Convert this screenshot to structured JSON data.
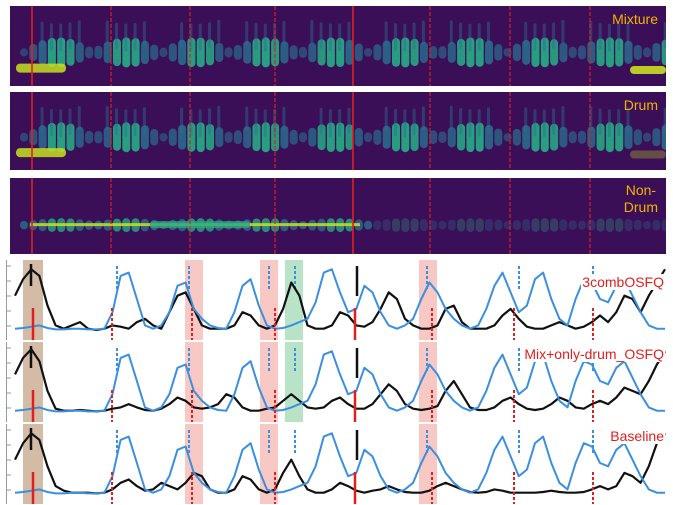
{
  "colors": {
    "background_dark": "#3b0f57",
    "energy_low": "#2a6f8e",
    "energy_mid": "#27a884",
    "energy_high": "#c9e020",
    "beat_line": "#e0201f",
    "label_spec": "#f0b400",
    "label_plot": "#e0201f",
    "curve_black": "#111111",
    "curve_blue": "#3a8fe0",
    "dashed_blue": "#3a8fe0",
    "band_red": "#f4b6b0",
    "band_green": "#a8dcb8",
    "band_brown": "#c9aa8f"
  },
  "spectrograms": [
    {
      "label_lines": [
        "Mixture"
      ]
    },
    {
      "label_lines": [
        "Drum"
      ]
    },
    {
      "label_lines": [
        "Non-",
        "Drum"
      ]
    }
  ],
  "chart_data": [
    {
      "type": "line",
      "label": "3combOSFQ",
      "x": [
        0,
        1,
        2,
        3,
        4,
        5,
        6,
        7,
        8,
        9,
        10,
        11,
        12,
        13,
        14,
        15,
        16,
        17,
        18,
        19,
        20,
        21,
        22,
        23,
        24,
        25,
        26,
        27,
        28,
        29,
        30,
        31,
        32,
        33,
        34,
        35,
        36,
        37,
        38,
        39,
        40,
        41,
        42,
        43,
        44,
        45,
        46,
        47,
        48,
        49,
        50,
        51,
        52,
        53,
        54,
        55,
        56,
        57,
        58,
        59,
        60,
        61,
        62,
        63,
        64,
        65,
        66,
        67,
        68,
        69,
        70,
        71,
        72,
        73,
        74,
        75,
        76,
        77,
        78,
        79,
        80
      ],
      "series": [
        {
          "values": [
            0.55,
            0.8,
            0.95,
            0.85,
            0.4,
            0.1,
            0.05,
            0.1,
            0.15,
            0.05,
            0.03,
            0.05,
            0.1,
            0.08,
            0.05,
            0.15,
            0.2,
            0.1,
            0.05,
            0.3,
            0.55,
            0.6,
            0.35,
            0.1,
            0.05,
            0.05,
            0.05,
            0.1,
            0.3,
            0.25,
            0.1,
            0.05,
            0.1,
            0.35,
            0.75,
            0.55,
            0.1,
            0.05,
            0.05,
            0.1,
            0.3,
            0.25,
            0.1,
            0.08,
            0.15,
            0.35,
            0.6,
            0.5,
            0.2,
            0.1,
            0.05,
            0.05,
            0.1,
            0.35,
            0.4,
            0.15,
            0.05,
            0.05,
            0.05,
            0.1,
            0.25,
            0.35,
            0.2,
            0.08,
            0.05,
            0.05,
            0.1,
            0.15,
            0.1,
            0.05,
            0.08,
            0.15,
            0.25,
            0.15,
            0.3,
            0.55,
            0.5,
            0.3,
            0.55,
            0.75,
            0.95
          ]
        },
        {
          "values": [
            0.05,
            0.06,
            0.08,
            0.1,
            0.06,
            0.04,
            0.04,
            0.05,
            0.05,
            0.04,
            0.04,
            0.05,
            0.3,
            0.85,
            0.9,
            0.5,
            0.1,
            0.05,
            0.1,
            0.3,
            0.7,
            0.75,
            0.35,
            0.2,
            0.1,
            0.06,
            0.05,
            0.3,
            0.7,
            0.8,
            0.4,
            0.1,
            0.05,
            0.06,
            0.1,
            0.15,
            0.2,
            0.45,
            0.9,
            0.95,
            0.6,
            0.3,
            0.35,
            0.7,
            0.6,
            0.3,
            0.1,
            0.05,
            0.1,
            0.2,
            0.5,
            0.75,
            0.6,
            0.35,
            0.2,
            0.1,
            0.05,
            0.1,
            0.35,
            0.7,
            0.9,
            0.6,
            0.3,
            0.4,
            0.8,
            0.9,
            0.5,
            0.2,
            0.1,
            0.5,
            0.8,
            0.75,
            0.5,
            0.45,
            0.7,
            0.8,
            0.55,
            0.3,
            0.1,
            0.05,
            0.05
          ]
        }
      ]
    },
    {
      "type": "line",
      "label": "Mix+only-drum_OSFQ",
      "x": [
        0,
        1,
        2,
        3,
        4,
        5,
        6,
        7,
        8,
        9,
        10,
        11,
        12,
        13,
        14,
        15,
        16,
        17,
        18,
        19,
        20,
        21,
        22,
        23,
        24,
        25,
        26,
        27,
        28,
        29,
        30,
        31,
        32,
        33,
        34,
        35,
        36,
        37,
        38,
        39,
        40,
        41,
        42,
        43,
        44,
        45,
        46,
        47,
        48,
        49,
        50,
        51,
        52,
        53,
        54,
        55,
        56,
        57,
        58,
        59,
        60,
        61,
        62,
        63,
        64,
        65,
        66,
        67,
        68,
        69,
        70,
        71,
        72,
        73,
        74,
        75,
        76,
        77,
        78,
        79,
        80
      ],
      "series": [
        {
          "values": [
            0.6,
            0.85,
            0.98,
            0.8,
            0.35,
            0.08,
            0.05,
            0.05,
            0.06,
            0.05,
            0.04,
            0.05,
            0.08,
            0.1,
            0.15,
            0.1,
            0.06,
            0.05,
            0.08,
            0.15,
            0.25,
            0.2,
            0.1,
            0.08,
            0.1,
            0.15,
            0.3,
            0.25,
            0.1,
            0.05,
            0.05,
            0.08,
            0.1,
            0.2,
            0.3,
            0.2,
            0.1,
            0.08,
            0.1,
            0.2,
            0.25,
            0.15,
            0.08,
            0.08,
            0.15,
            0.3,
            0.45,
            0.35,
            0.15,
            0.08,
            0.06,
            0.08,
            0.12,
            0.35,
            0.5,
            0.3,
            0.1,
            0.06,
            0.06,
            0.1,
            0.2,
            0.25,
            0.15,
            0.08,
            0.06,
            0.08,
            0.15,
            0.25,
            0.2,
            0.1,
            0.08,
            0.15,
            0.2,
            0.15,
            0.25,
            0.4,
            0.35,
            0.3,
            0.5,
            0.75,
            0.95
          ]
        },
        {
          "values": [
            0.05,
            0.06,
            0.08,
            0.1,
            0.06,
            0.04,
            0.04,
            0.05,
            0.05,
            0.04,
            0.04,
            0.05,
            0.3,
            0.85,
            0.9,
            0.5,
            0.1,
            0.05,
            0.1,
            0.3,
            0.7,
            0.75,
            0.35,
            0.2,
            0.1,
            0.06,
            0.05,
            0.3,
            0.7,
            0.8,
            0.4,
            0.1,
            0.05,
            0.06,
            0.1,
            0.15,
            0.2,
            0.45,
            0.9,
            0.95,
            0.6,
            0.3,
            0.35,
            0.7,
            0.6,
            0.3,
            0.1,
            0.05,
            0.1,
            0.2,
            0.5,
            0.75,
            0.6,
            0.35,
            0.2,
            0.1,
            0.05,
            0.1,
            0.35,
            0.7,
            0.9,
            0.6,
            0.3,
            0.4,
            0.8,
            0.9,
            0.5,
            0.2,
            0.1,
            0.5,
            0.8,
            0.75,
            0.5,
            0.45,
            0.7,
            0.8,
            0.55,
            0.3,
            0.1,
            0.05,
            0.05
          ]
        }
      ]
    },
    {
      "type": "line",
      "label": "Baseline",
      "x": [
        0,
        1,
        2,
        3,
        4,
        5,
        6,
        7,
        8,
        9,
        10,
        11,
        12,
        13,
        14,
        15,
        16,
        17,
        18,
        19,
        20,
        21,
        22,
        23,
        24,
        25,
        26,
        27,
        28,
        29,
        30,
        31,
        32,
        33,
        34,
        35,
        36,
        37,
        38,
        39,
        40,
        41,
        42,
        43,
        44,
        45,
        46,
        47,
        48,
        49,
        50,
        51,
        52,
        53,
        54,
        55,
        56,
        57,
        58,
        59,
        60,
        61,
        62,
        63,
        64,
        65,
        66,
        67,
        68,
        69,
        70,
        71,
        72,
        73,
        74,
        75,
        76,
        77,
        78,
        79,
        80
      ],
      "series": [
        {
          "values": [
            0.55,
            0.8,
            0.95,
            0.85,
            0.45,
            0.15,
            0.08,
            0.05,
            0.05,
            0.05,
            0.04,
            0.05,
            0.1,
            0.2,
            0.25,
            0.15,
            0.08,
            0.1,
            0.2,
            0.15,
            0.1,
            0.2,
            0.35,
            0.3,
            0.1,
            0.05,
            0.05,
            0.1,
            0.3,
            0.25,
            0.1,
            0.05,
            0.1,
            0.35,
            0.55,
            0.3,
            0.1,
            0.05,
            0.05,
            0.1,
            0.2,
            0.15,
            0.08,
            0.05,
            0.08,
            0.1,
            0.15,
            0.1,
            0.06,
            0.05,
            0.05,
            0.08,
            0.15,
            0.2,
            0.15,
            0.1,
            0.06,
            0.05,
            0.06,
            0.1,
            0.08,
            0.05,
            0.05,
            0.05,
            0.05,
            0.06,
            0.08,
            0.06,
            0.05,
            0.05,
            0.06,
            0.1,
            0.15,
            0.1,
            0.15,
            0.35,
            0.3,
            0.2,
            0.45,
            0.8,
            0.95
          ]
        },
        {
          "values": [
            0.05,
            0.06,
            0.08,
            0.1,
            0.06,
            0.04,
            0.04,
            0.05,
            0.05,
            0.04,
            0.04,
            0.05,
            0.3,
            0.85,
            0.9,
            0.5,
            0.1,
            0.05,
            0.1,
            0.3,
            0.7,
            0.75,
            0.35,
            0.2,
            0.1,
            0.06,
            0.05,
            0.3,
            0.7,
            0.8,
            0.4,
            0.1,
            0.05,
            0.06,
            0.1,
            0.15,
            0.2,
            0.45,
            0.9,
            0.95,
            0.6,
            0.3,
            0.35,
            0.7,
            0.6,
            0.3,
            0.1,
            0.05,
            0.1,
            0.2,
            0.5,
            0.75,
            0.6,
            0.35,
            0.2,
            0.1,
            0.05,
            0.1,
            0.35,
            0.7,
            0.9,
            0.6,
            0.3,
            0.4,
            0.8,
            0.9,
            0.5,
            0.2,
            0.1,
            0.5,
            0.8,
            0.75,
            0.5,
            0.45,
            0.7,
            0.8,
            0.55,
            0.3,
            0.1,
            0.05,
            0.05
          ]
        }
      ]
    }
  ]
}
